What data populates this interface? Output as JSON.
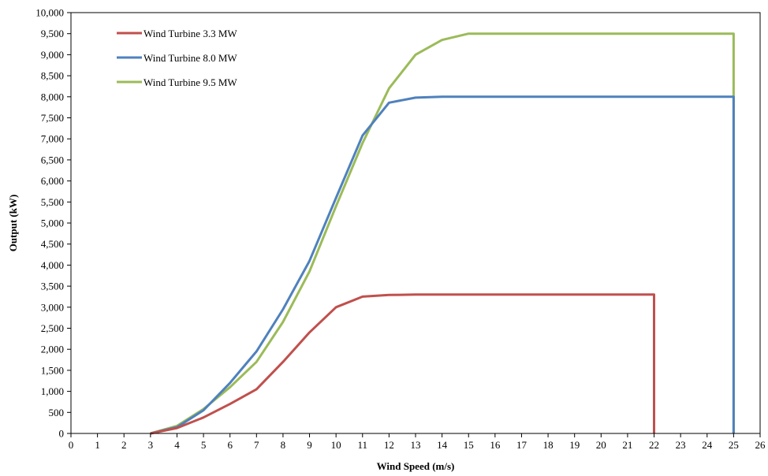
{
  "chart_data": {
    "type": "line",
    "title": "",
    "xlabel": "Wind Speed (m/s)",
    "ylabel": "Output (kW)",
    "xlim": [
      0,
      26
    ],
    "ylim": [
      0,
      10000
    ],
    "x_ticks": [
      "0",
      "1",
      "2",
      "3",
      "4",
      "5",
      "6",
      "7",
      "8",
      "9",
      "10",
      "11",
      "12",
      "13",
      "14",
      "15",
      "16",
      "17",
      "18",
      "19",
      "20",
      "21",
      "22",
      "23",
      "24",
      "25",
      "26"
    ],
    "y_ticks": [
      "0",
      "500",
      "1,000",
      "1,500",
      "2,000",
      "2,500",
      "3,000",
      "3,500",
      "4,000",
      "4,500",
      "5,000",
      "5,500",
      "6,000",
      "6,500",
      "7,000",
      "7,500",
      "8,000",
      "8,500",
      "9,000",
      "9,500",
      "10,000"
    ],
    "grid": false,
    "legend_position": "top-left",
    "series": [
      {
        "name": "Wind Turbine 3.3 MW",
        "color": "#c0504d",
        "points": [
          [
            3,
            0
          ],
          [
            4,
            130
          ],
          [
            5,
            380
          ],
          [
            6,
            700
          ],
          [
            7,
            1050
          ],
          [
            8,
            1700
          ],
          [
            9,
            2400
          ],
          [
            10,
            3000
          ],
          [
            11,
            3250
          ],
          [
            12,
            3290
          ],
          [
            13,
            3300
          ],
          [
            14,
            3300
          ],
          [
            15,
            3300
          ],
          [
            16,
            3300
          ],
          [
            17,
            3300
          ],
          [
            18,
            3300
          ],
          [
            19,
            3300
          ],
          [
            20,
            3300
          ],
          [
            21,
            3300
          ],
          [
            22,
            3300
          ],
          [
            22,
            0
          ]
        ]
      },
      {
        "name": "Wind Turbine 8.0 MW",
        "color": "#4f81bd",
        "points": [
          [
            3,
            0
          ],
          [
            4,
            150
          ],
          [
            5,
            550
          ],
          [
            6,
            1200
          ],
          [
            7,
            1950
          ],
          [
            8,
            2950
          ],
          [
            9,
            4100
          ],
          [
            10,
            5600
          ],
          [
            11,
            7080
          ],
          [
            12,
            7860
          ],
          [
            13,
            7980
          ],
          [
            14,
            8000
          ],
          [
            15,
            8000
          ],
          [
            16,
            8000
          ],
          [
            17,
            8000
          ],
          [
            18,
            8000
          ],
          [
            19,
            8000
          ],
          [
            20,
            8000
          ],
          [
            21,
            8000
          ],
          [
            22,
            8000
          ],
          [
            23,
            8000
          ],
          [
            24,
            8000
          ],
          [
            25,
            8000
          ],
          [
            25,
            0
          ]
        ]
      },
      {
        "name": "Wind Turbine 9.5 MW",
        "color": "#9bbb59",
        "points": [
          [
            3,
            0
          ],
          [
            4,
            180
          ],
          [
            5,
            580
          ],
          [
            6,
            1100
          ],
          [
            7,
            1700
          ],
          [
            8,
            2650
          ],
          [
            9,
            3850
          ],
          [
            10,
            5400
          ],
          [
            11,
            6900
          ],
          [
            12,
            8200
          ],
          [
            13,
            9000
          ],
          [
            14,
            9350
          ],
          [
            15,
            9500
          ],
          [
            16,
            9500
          ],
          [
            17,
            9500
          ],
          [
            18,
            9500
          ],
          [
            19,
            9500
          ],
          [
            20,
            9500
          ],
          [
            21,
            9500
          ],
          [
            22,
            9500
          ],
          [
            23,
            9500
          ],
          [
            24,
            9500
          ],
          [
            25,
            9500
          ],
          [
            25,
            0
          ]
        ]
      }
    ]
  }
}
